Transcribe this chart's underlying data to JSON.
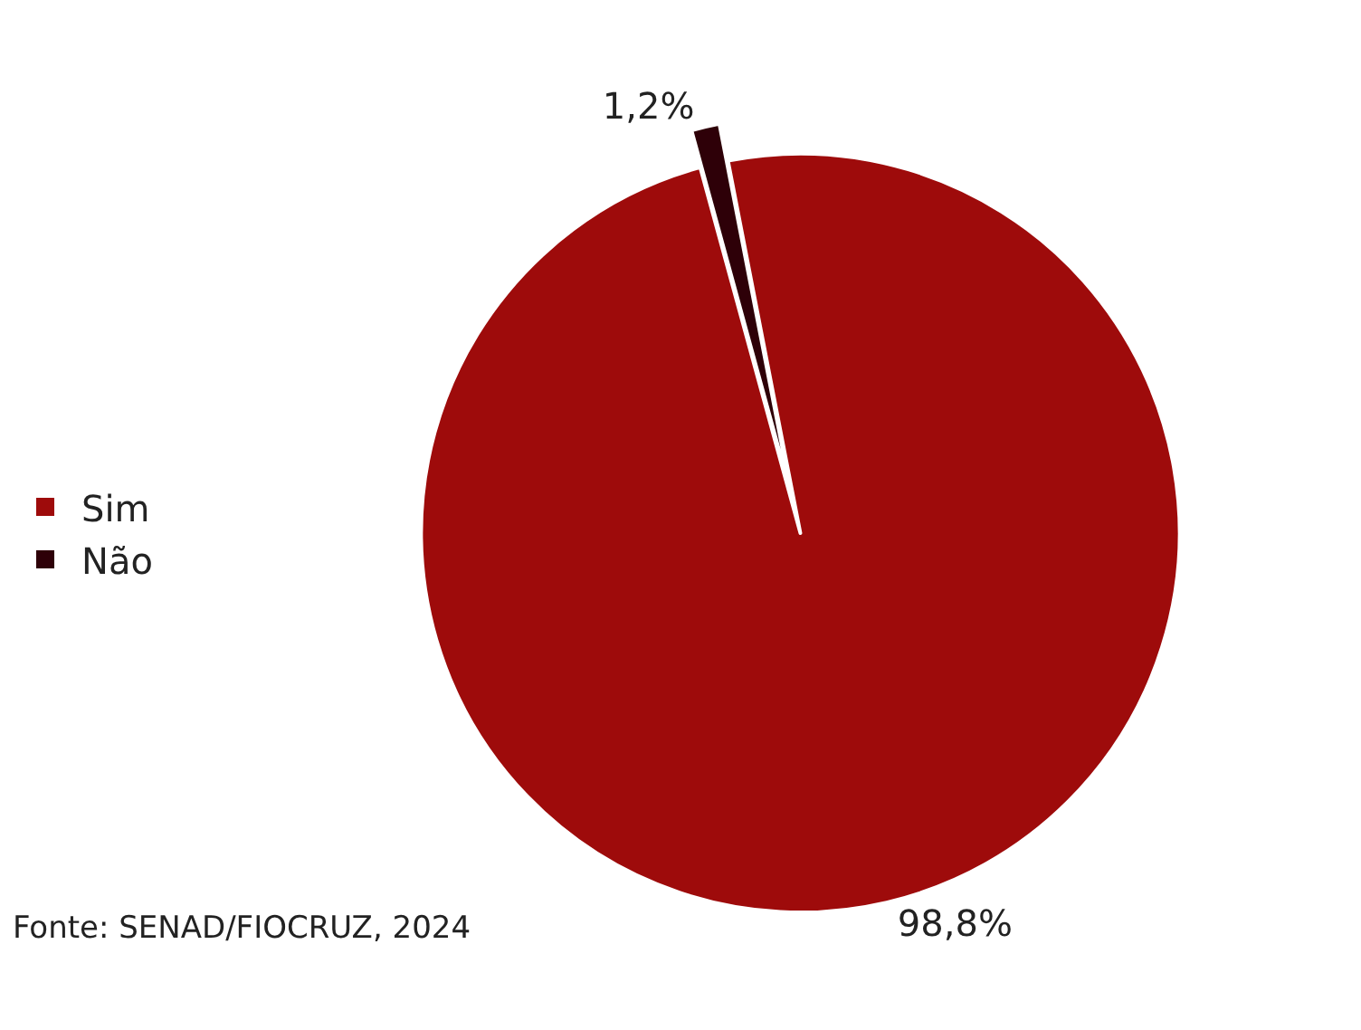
{
  "chart_data": {
    "type": "pie",
    "categories": [
      "Sim",
      "Não"
    ],
    "values": [
      98.8,
      1.2
    ],
    "colors": [
      "#9e0b0b",
      "#2e0008"
    ],
    "value_labels": [
      "98,8%",
      "1,2%"
    ],
    "legend": "left",
    "annotations": [
      "Fonte: SENAD/FIOCRUZ, 2024"
    ]
  }
}
